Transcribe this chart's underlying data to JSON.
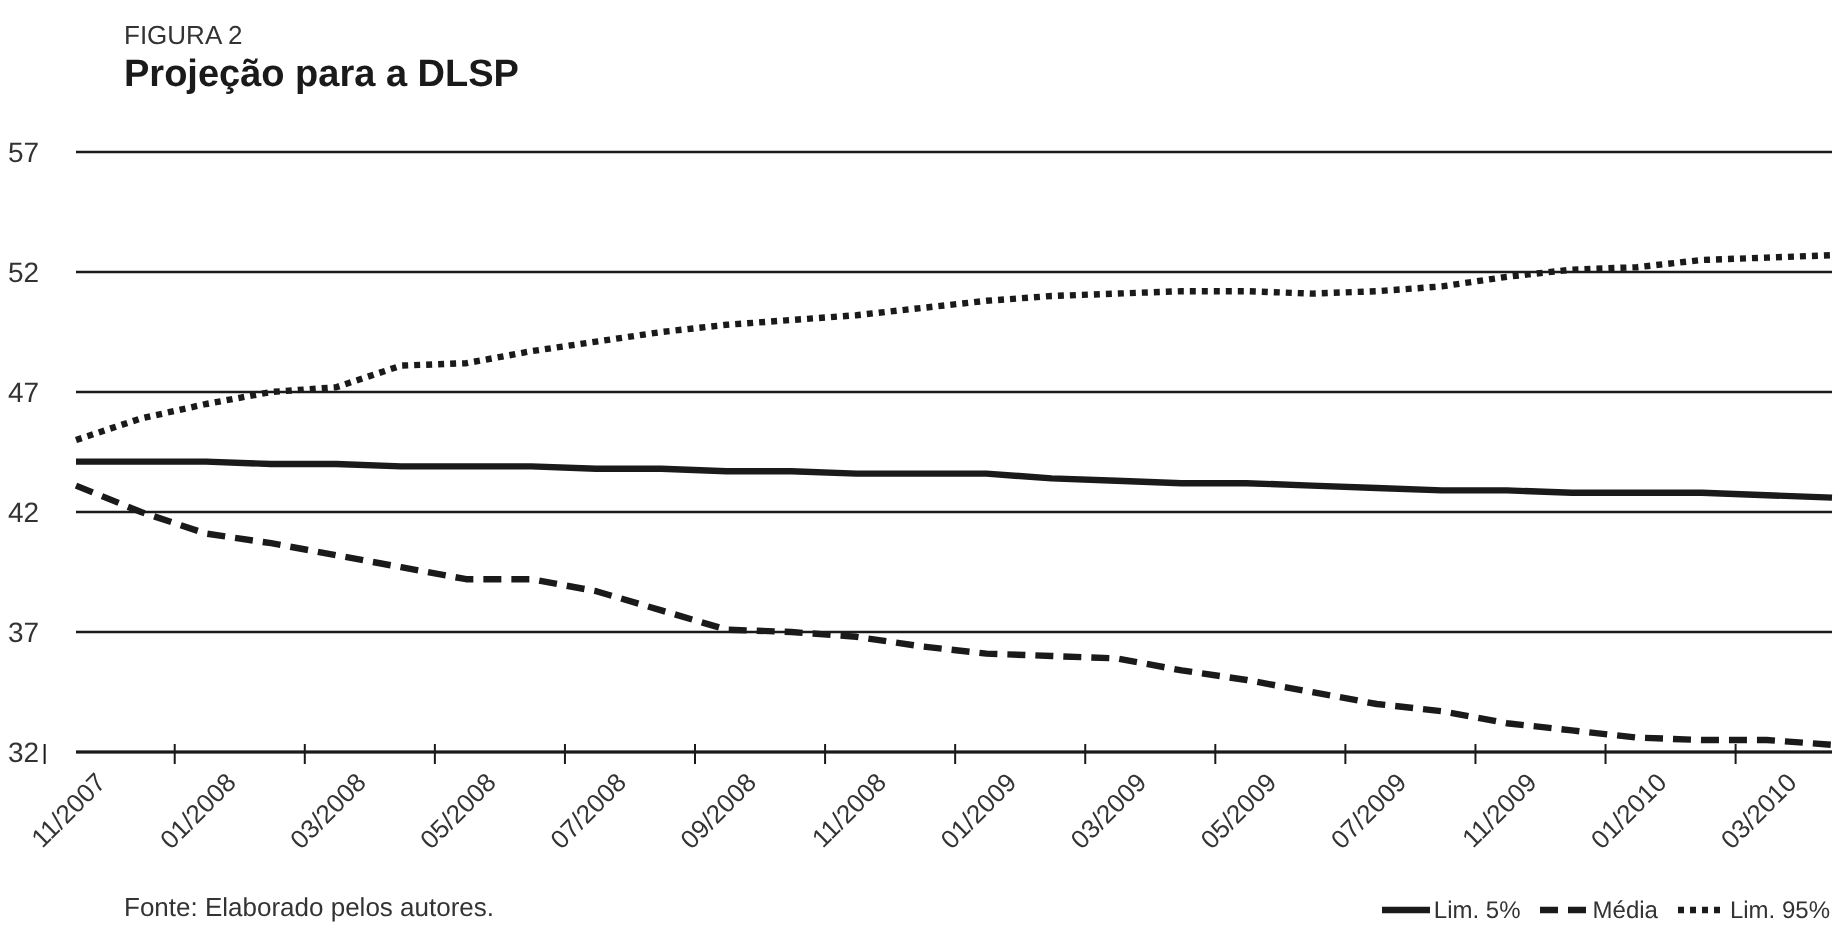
{
  "chart_data": {
    "type": "line",
    "subtitle": "FIGURA 2",
    "title": "Projeção para a DLSP",
    "categories": [
      "11/2007",
      null,
      "01/2008",
      null,
      "03/2008",
      null,
      "05/2008",
      null,
      "07/2008",
      null,
      "09/2008",
      null,
      "11/2008",
      null,
      "01/2009",
      null,
      "03/2009",
      null,
      "05/2009",
      null,
      "07/2009",
      null,
      "11/2009",
      null,
      "01/2010",
      null,
      "03/2010",
      null
    ],
    "series": [
      {
        "name": "Lim. 5%",
        "color": "#1a1a1a",
        "line_style": "solid",
        "values": [
          44.1,
          44.1,
          44.1,
          44.0,
          44.0,
          43.9,
          43.9,
          43.9,
          43.8,
          43.8,
          43.7,
          43.7,
          43.6,
          43.6,
          43.6,
          43.4,
          43.3,
          43.2,
          43.2,
          43.1,
          43.0,
          42.9,
          42.9,
          42.8,
          42.8,
          42.8,
          42.7,
          42.6
        ]
      },
      {
        "name": "Média",
        "color": "#1a1a1a",
        "line_style": "dashed",
        "values": [
          43.1,
          42.0,
          41.1,
          40.7,
          40.2,
          39.7,
          39.2,
          39.2,
          38.7,
          37.9,
          37.1,
          37.0,
          36.8,
          36.4,
          36.1,
          36.0,
          35.9,
          35.4,
          35.0,
          34.5,
          34.0,
          33.7,
          33.2,
          32.9,
          32.6,
          32.5,
          32.5,
          32.3
        ]
      },
      {
        "name": "Lim. 95%",
        "color": "#1a1a1a",
        "line_style": "dotted",
        "values": [
          45.0,
          45.9,
          46.5,
          47.0,
          47.2,
          48.1,
          48.2,
          48.7,
          49.1,
          49.5,
          49.8,
          50.0,
          50.2,
          50.5,
          50.8,
          51.0,
          51.1,
          51.2,
          51.2,
          51.1,
          51.2,
          51.4,
          51.8,
          52.1,
          52.2,
          52.5,
          52.6,
          52.7
        ]
      }
    ],
    "ylim": [
      32,
      57
    ],
    "yticks": [
      32,
      37,
      42,
      47,
      52,
      57
    ],
    "grid": "y",
    "legend": "bottom right",
    "marker": "none",
    "annotations": [
      "Fonte: Elaborado pelos autores."
    ]
  }
}
